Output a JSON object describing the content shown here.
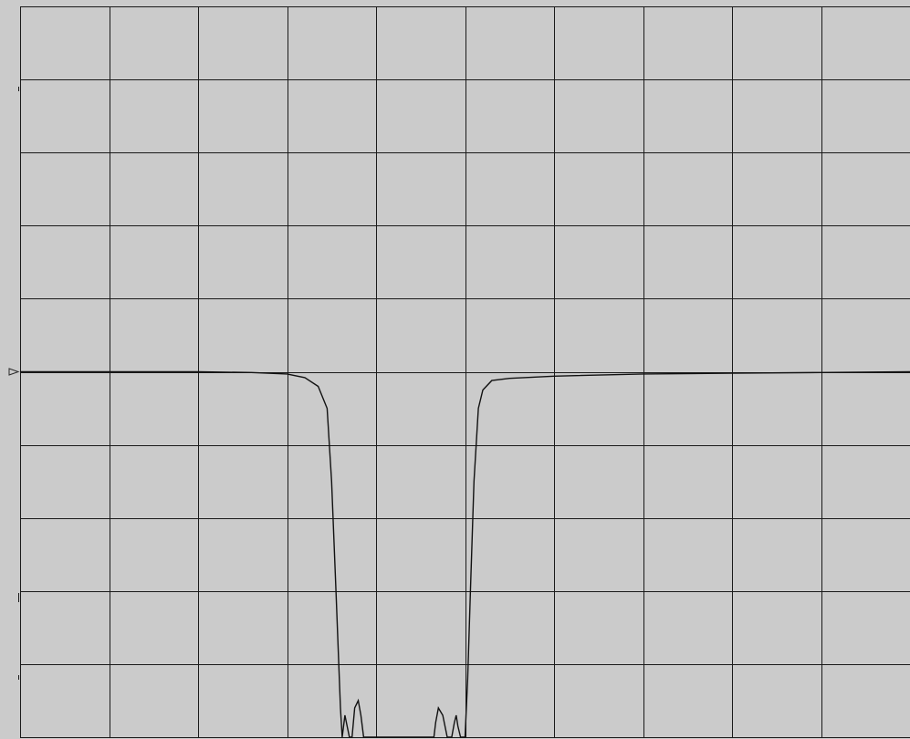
{
  "chart_data": {
    "type": "line",
    "title": "",
    "xlabel": "",
    "ylabel": "",
    "grid": true,
    "xlim": [
      0,
      10
    ],
    "ylim": [
      -10,
      0
    ],
    "reference_level_div": -5,
    "series": [
      {
        "x": [
          0,
          1,
          2,
          2.6,
          3,
          3.2,
          3.35,
          3.45,
          3.5,
          3.55,
          3.6,
          3.62,
          3.65,
          3.7,
          3.73,
          3.76,
          3.8,
          3.83,
          3.86,
          3.9,
          3.95,
          4,
          4.5,
          4.65,
          4.67,
          4.7,
          4.75,
          4.8,
          4.85,
          4.88,
          4.9,
          4.92,
          4.95,
          5,
          5.03,
          5.06,
          5.1,
          5.15,
          5.2,
          5.3,
          5.5,
          6,
          7,
          8,
          9,
          10
        ],
        "y": [
          -5,
          -5,
          -5,
          -5.01,
          -5.03,
          -5.08,
          -5.2,
          -5.5,
          -6.5,
          -8,
          -9.6,
          -10,
          -9.7,
          -10,
          -10,
          -9.6,
          -9.5,
          -9.7,
          -10,
          -10,
          -10,
          -10,
          -10,
          -10,
          -9.8,
          -9.6,
          -9.7,
          -10,
          -10,
          -9.8,
          -9.7,
          -9.85,
          -10,
          -10,
          -9.2,
          -8,
          -6.5,
          -5.5,
          -5.25,
          -5.12,
          -5.09,
          -5.06,
          -5.03,
          -5.02,
          -5.01,
          -5
        ]
      }
    ]
  }
}
